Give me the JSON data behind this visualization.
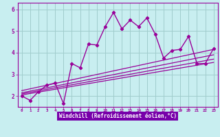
{
  "xlabel": "Windchill (Refroidissement éolien,°C)",
  "bg_color": "#c8eef0",
  "line_color": "#990099",
  "grid_color": "#a0cccc",
  "xlim": [
    -0.5,
    23.5
  ],
  "ylim": [
    1.5,
    6.3
  ],
  "xticks": [
    0,
    1,
    2,
    3,
    4,
    5,
    6,
    7,
    8,
    9,
    10,
    11,
    12,
    13,
    14,
    15,
    16,
    17,
    18,
    19,
    20,
    21,
    22,
    23
  ],
  "yticks": [
    2,
    3,
    4,
    5,
    6
  ],
  "scatter_x": [
    0,
    1,
    2,
    3,
    4,
    5,
    6,
    7,
    8,
    9,
    10,
    11,
    12,
    13,
    14,
    15,
    16,
    17,
    18,
    19,
    20,
    21,
    22,
    23
  ],
  "scatter_y": [
    2.0,
    1.8,
    2.2,
    2.5,
    2.6,
    1.65,
    3.5,
    3.3,
    4.4,
    4.35,
    5.2,
    5.85,
    5.1,
    5.5,
    5.2,
    5.6,
    4.85,
    3.75,
    4.1,
    4.15,
    4.75,
    3.5,
    3.5,
    4.2
  ],
  "reg_lines": [
    {
      "x": [
        0,
        23
      ],
      "y": [
        2.05,
        3.55
      ]
    },
    {
      "x": [
        0,
        23
      ],
      "y": [
        2.1,
        3.7
      ]
    },
    {
      "x": [
        0,
        23
      ],
      "y": [
        2.15,
        3.9
      ]
    },
    {
      "x": [
        0,
        23
      ],
      "y": [
        2.25,
        4.15
      ]
    }
  ],
  "xlabel_bg": "#7700aa",
  "xlabel_color": "#ffffff"
}
